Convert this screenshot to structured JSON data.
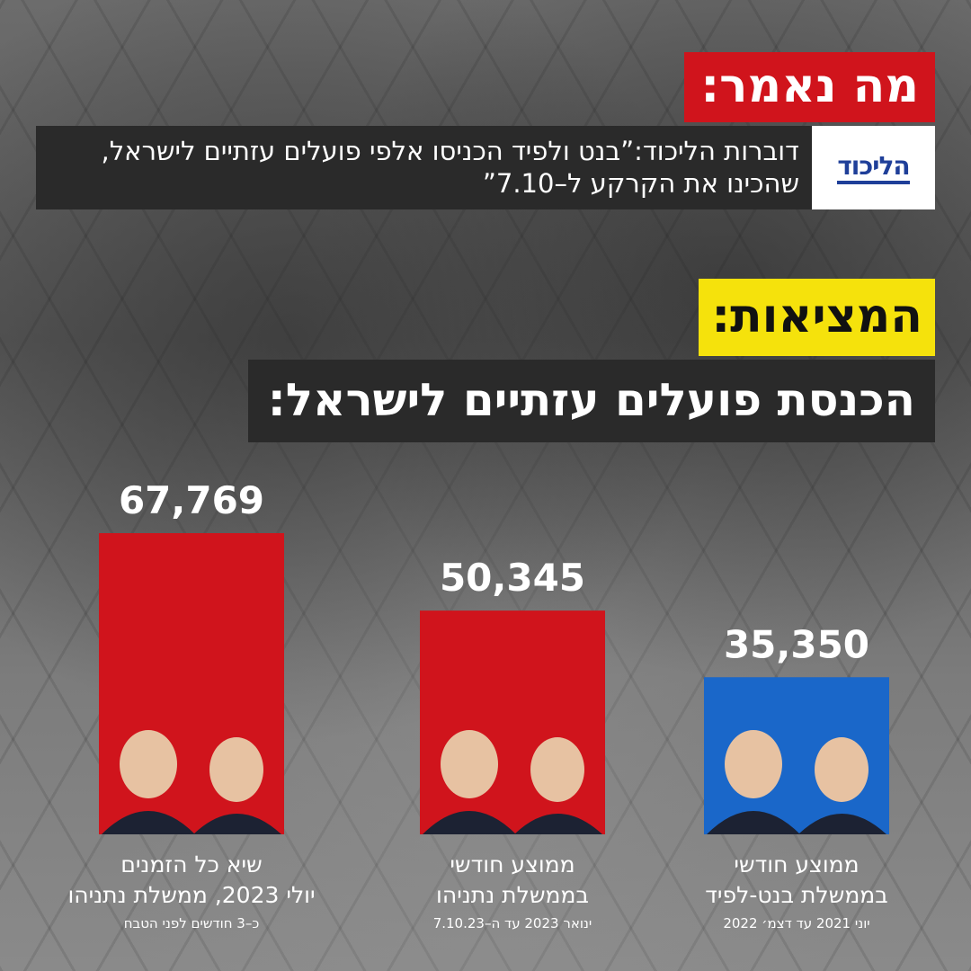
{
  "header": {
    "said_tag": "מה נאמר:",
    "claim_text": "דוברות הליכוד:”בנט ולפיד הכניסו אלפי פועלים עזתיים לישראל, שהכינו את הקרקע ל–7.10”",
    "logo_text": "הליכוד",
    "reality_tag": "המציאות:",
    "headline": "הכנסת פועלים עזתיים לישראל:"
  },
  "colors": {
    "red": "#d0141c",
    "blue": "#1a67c9",
    "yellow": "#f5e20c",
    "dark_box": "#2a2a2a"
  },
  "chart_data": {
    "type": "bar",
    "title": "הכנסת פועלים עזתיים לישראל:",
    "categories": [
      "שיא כל הזמנים יולי 2023, ממשלת נתניהו",
      "ממוצע חודשי בממשלת נתניהו",
      "ממוצע חודשי בממשלת בנט-לפיד"
    ],
    "values": [
      67769,
      50345,
      35350
    ],
    "value_labels": [
      "67,769",
      "50,345",
      "35,350"
    ],
    "bar_colors": [
      "#d0141c",
      "#d0141c",
      "#1a67c9"
    ],
    "captions": [
      {
        "line1": "שיא כל הזמנים",
        "line2": "יולי 2023, ממשלת נתניהו",
        "sub": "כ–3 חודשים לפני הטבח"
      },
      {
        "line1": "ממוצע חודשי",
        "line2": "בממשלת נתניהו",
        "sub": "ינואר 2023 עד ה–7.10.23"
      },
      {
        "line1": "ממוצע חודשי",
        "line2": "בממשלת בנט-לפיד",
        "sub": "יוני 2021 עד דצמ׳ 2022"
      }
    ],
    "grid": false
  }
}
